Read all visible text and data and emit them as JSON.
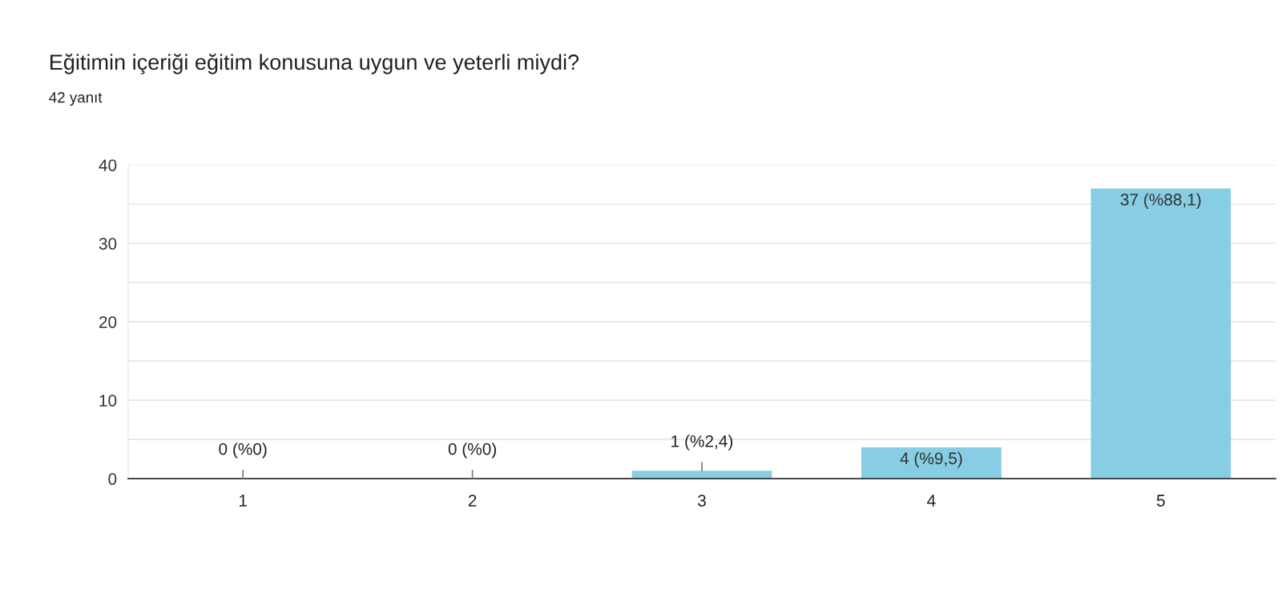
{
  "chart_data": {
    "type": "bar",
    "title": "Eğitimin içeriği eğitim konusuna uygun ve yeterli miydi?",
    "subtitle": "42 yanıt",
    "categories": [
      "1",
      "2",
      "3",
      "4",
      "5"
    ],
    "values": [
      0,
      0,
      1,
      4,
      37
    ],
    "value_labels": [
      "0 (%0)",
      "0 (%0)",
      "1 (%2,4)",
      "4 (%9,5)",
      "37 (%88,1)"
    ],
    "color": "#87cde3",
    "ylim": [
      0,
      40
    ],
    "yticks": [
      0,
      {
        "value": 5,
        "label": null
      },
      10,
      {
        "value": 15,
        "label": null
      },
      20,
      {
        "value": 25,
        "label": null
      },
      30,
      {
        "value": 35,
        "label": null
      },
      40
    ],
    "grid": "y"
  }
}
